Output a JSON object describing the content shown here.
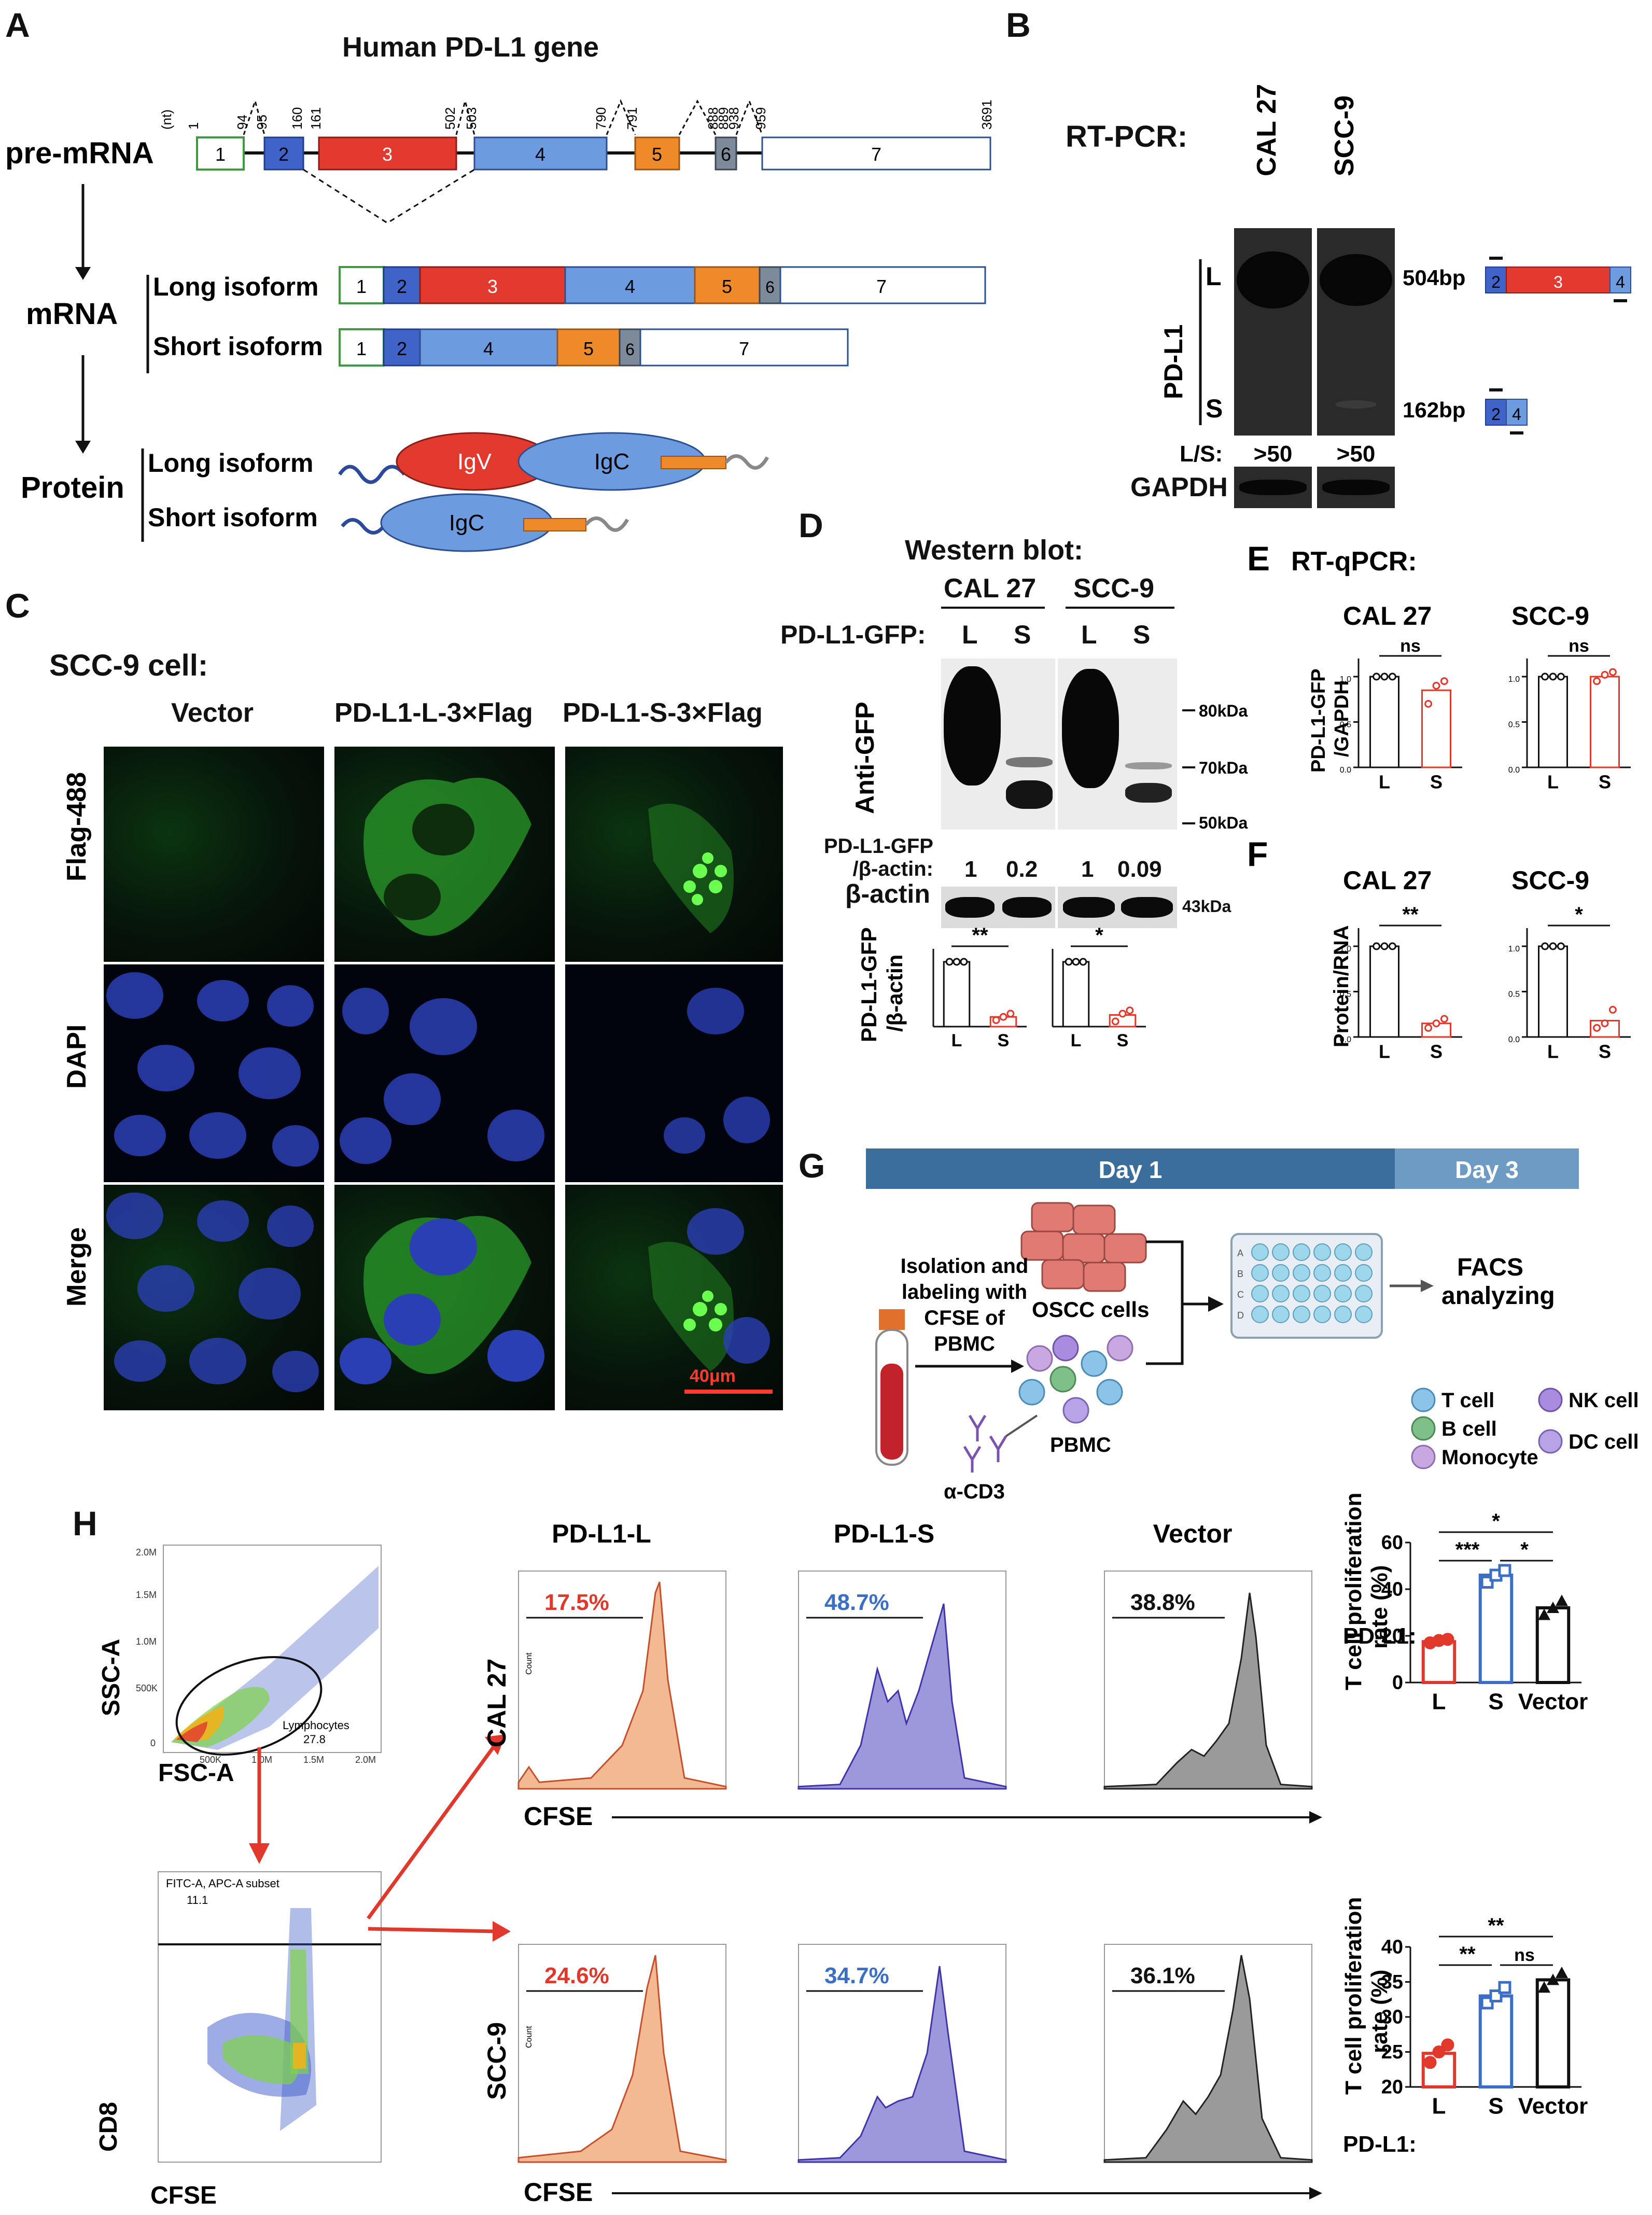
{
  "panels": {
    "A": "A",
    "B": "B",
    "C": "C",
    "D": "D",
    "E": "E",
    "F": "F",
    "G": "G",
    "H": "H"
  },
  "panelA": {
    "title": "Human PD-L1 gene",
    "pre_mrna_label": "pre-mRNA",
    "mrna_label": "mRNA",
    "protein_label": "Protein",
    "nt_label": "(nt)",
    "positions": [
      "1",
      "94",
      "95",
      "160",
      "161",
      "502",
      "503",
      "790",
      "791",
      "888",
      "889",
      "938",
      "959",
      "3691"
    ],
    "exons": [
      "1",
      "2",
      "3",
      "4",
      "5",
      "6",
      "7"
    ],
    "long_isoform": "Long isoform",
    "short_isoform": "Short isoform",
    "domains": {
      "igv": "IgV",
      "igc": "IgC"
    },
    "colors": {
      "exon1": "#2e9a2e",
      "exon2": "#3f63c9",
      "exon3": "#e23a2f",
      "exon4": "#6d9be0",
      "exon5": "#ef8a2b",
      "exon6": "#7d8a9a",
      "exon7": "#ffffff"
    }
  },
  "panelB": {
    "title": "RT-PCR:",
    "lanes": [
      "CAL 27",
      "SCC-9"
    ],
    "gene": "PD-L1",
    "long": "L",
    "short": "S",
    "long_size": "504bp",
    "short_size": "162bp",
    "ratio_label": "L/S:",
    "ratios": [
      ">50",
      ">50"
    ],
    "gapdh": "GAPDH",
    "exons_long": [
      "2",
      "3",
      "4"
    ],
    "exons_short": [
      "2",
      "4"
    ]
  },
  "panelC": {
    "title": "SCC-9 cell:",
    "columns": [
      "Vector",
      "PD-L1-L-3×Flag",
      "PD-L1-S-3×Flag"
    ],
    "rows": [
      "Flag-488",
      "DAPI",
      "Merge"
    ],
    "scale_bar": "40μm"
  },
  "panelD": {
    "title": "Western blot:",
    "cells": [
      "CAL 27",
      "SCC-9"
    ],
    "construct_label": "PD-L1-GFP:",
    "lanes": [
      "L",
      "S",
      "L",
      "S"
    ],
    "antibody": "Anti-GFP",
    "markers": [
      "80kDa",
      "70kDa",
      "50kDa"
    ],
    "ratio_label_1": "PD-L1-GFP",
    "ratio_label_2": "/β-actin:",
    "ratios": [
      "1",
      "0.2",
      "1",
      "0.09"
    ],
    "actin": "β-actin",
    "actin_size": "43kDa",
    "bar_ylabel_1": "PD-L1-GFP",
    "bar_ylabel_2": "/β-actin",
    "sig": [
      "**",
      "*"
    ]
  },
  "panelE": {
    "title": "RT-qPCR:",
    "ylabel_1": "PD-L1-GFP",
    "ylabel_2": "/GAPDH",
    "cells": [
      "CAL 27",
      "SCC-9"
    ],
    "sig": [
      "ns",
      "ns"
    ]
  },
  "panelF": {
    "ylabel": "Protein/RNA",
    "cells": [
      "CAL 27",
      "SCC-9"
    ],
    "sig": [
      "**",
      "*"
    ]
  },
  "panelG": {
    "day1": "Day 1",
    "day3": "Day 3",
    "oscc": "OSCC cells",
    "isolation": [
      "Isolation and",
      "labeling with",
      "CFSE of",
      "PBMC"
    ],
    "pbmc": "PBMC",
    "acd3": "α-CD3",
    "facs": [
      "FACS",
      "analyzing"
    ],
    "legend": [
      "T cell",
      "B cell",
      "Monocyte",
      "NK cell",
      "DC cell"
    ],
    "plate_rows": [
      "A",
      "B",
      "C",
      "D"
    ],
    "legend_colors": {
      "t": "#8cc3e8",
      "b": "#7fc08a",
      "mono": "#c9a7e0",
      "nk": "#a98be0",
      "dc": "#b7a3e6"
    }
  },
  "panelH": {
    "scatter1": {
      "y": "SSC-A",
      "x": "FSC-A",
      "gate": "Lymphocytes",
      "gate_value": "27.8",
      "yticks": [
        "2.0M",
        "1.5M",
        "1.0M",
        "500K",
        "0"
      ],
      "xticks": [
        "500K",
        "1.0M",
        "1.5M",
        "2.0M"
      ]
    },
    "scatter2": {
      "y": "CD8",
      "x": "CFSE",
      "gate": "FITC-A, APC-A subset",
      "gate_value": "11.1"
    },
    "columns": [
      "PD-L1-L",
      "PD-L1-S",
      "Vector"
    ],
    "rows": [
      "CAL 27",
      "SCC-9"
    ],
    "hist_x": "CFSE",
    "hist_ylabel": "Count",
    "percent_cal27": [
      "17.5%",
      "48.7%",
      "38.8%"
    ],
    "percent_scc9": [
      "24.6%",
      "34.7%",
      "36.1%"
    ],
    "bar_ylabel_1": "T cell proliferation",
    "bar_ylabel_2": "rate (%)",
    "bar_xprefix": "PD-L1:",
    "bar_categories": [
      "L",
      "S",
      "Vector"
    ],
    "sig_cal27": [
      "*",
      "***",
      "*"
    ],
    "sig_scc9": [
      "**",
      "**",
      "ns"
    ]
  },
  "chart_data": [
    {
      "type": "bar",
      "id": "D-CAL27",
      "categories": [
        "L",
        "S"
      ],
      "values": [
        1.0,
        0.15
      ],
      "points": [
        [
          1,
          1,
          1
        ],
        [
          0.1,
          0.15,
          0.2
        ]
      ],
      "ylim": [
        0,
        1.2
      ],
      "sig": "**"
    },
    {
      "type": "bar",
      "id": "D-SCC9",
      "categories": [
        "L",
        "S"
      ],
      "values": [
        1.0,
        0.18
      ],
      "points": [
        [
          1,
          1,
          1
        ],
        [
          0.08,
          0.2,
          0.25
        ]
      ],
      "ylim": [
        0,
        1.2
      ],
      "sig": "*"
    },
    {
      "type": "bar",
      "id": "E-CAL27",
      "categories": [
        "L",
        "S"
      ],
      "values": [
        1.0,
        0.85
      ],
      "points": [
        [
          1,
          1,
          1
        ],
        [
          0.7,
          0.9,
          0.95
        ]
      ],
      "ylim": [
        0,
        1.2
      ],
      "yticks": [
        0,
        0.5,
        1.0
      ],
      "sig": "ns"
    },
    {
      "type": "bar",
      "id": "E-SCC9",
      "categories": [
        "L",
        "S"
      ],
      "values": [
        1.0,
        1.0
      ],
      "points": [
        [
          1,
          1,
          1
        ],
        [
          0.95,
          1.02,
          1.05
        ]
      ],
      "ylim": [
        0,
        1.2
      ],
      "yticks": [
        0,
        0.5,
        1.0
      ],
      "sig": "ns"
    },
    {
      "type": "bar",
      "id": "F-CAL27",
      "categories": [
        "L",
        "S"
      ],
      "values": [
        1.0,
        0.15
      ],
      "points": [
        [
          1,
          1,
          1
        ],
        [
          0.1,
          0.15,
          0.2
        ]
      ],
      "ylim": [
        0,
        1.2
      ],
      "yticks": [
        0,
        0.5,
        1.0
      ],
      "sig": "**"
    },
    {
      "type": "bar",
      "id": "F-SCC9",
      "categories": [
        "L",
        "S"
      ],
      "values": [
        1.0,
        0.18
      ],
      "points": [
        [
          1,
          1,
          1
        ],
        [
          0.1,
          0.15,
          0.3
        ]
      ],
      "ylim": [
        0,
        1.2
      ],
      "yticks": [
        0,
        0.5,
        1.0
      ],
      "sig": "*"
    },
    {
      "type": "bar",
      "id": "H-CAL27",
      "categories": [
        "L",
        "S",
        "Vector"
      ],
      "values": [
        17.5,
        46,
        32
      ],
      "points": [
        [
          17,
          18,
          18.5
        ],
        [
          43,
          46,
          48
        ],
        [
          29,
          32,
          35
        ]
      ],
      "ylim": [
        0,
        60
      ],
      "yticks": [
        0,
        20,
        40,
        60
      ],
      "colors": [
        "#e0392b",
        "#3b6fc6",
        "#111111"
      ]
    },
    {
      "type": "bar",
      "id": "H-SCC9",
      "categories": [
        "L",
        "S",
        "Vector"
      ],
      "values": [
        24.8,
        33,
        35.3
      ],
      "points": [
        [
          23.5,
          25,
          26
        ],
        [
          32,
          33,
          34.2
        ],
        [
          34.2,
          35.3,
          36.3
        ]
      ],
      "ylim": [
        20,
        40
      ],
      "yticks": [
        20,
        25,
        30,
        35,
        40
      ],
      "colors": [
        "#e0392b",
        "#3b6fc6",
        "#111111"
      ]
    }
  ]
}
